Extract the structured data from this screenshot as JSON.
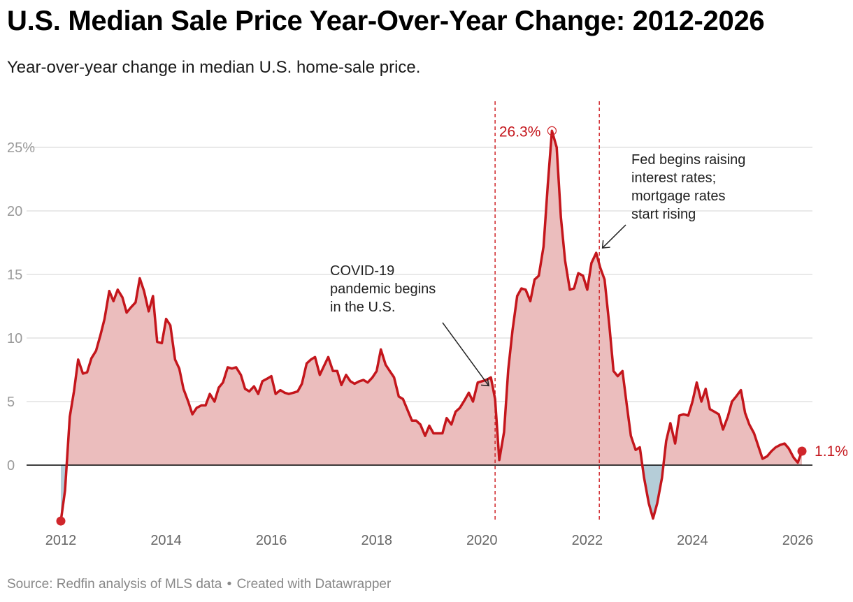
{
  "header": {
    "title": "U.S. Median Sale Price Year-Over-Year Change: 2012-2026",
    "subtitle": "Year-over-year change in median U.S. home-sale price."
  },
  "footer": {
    "source": "Source: Redfin analysis of MLS data",
    "separator": "•",
    "credit": "Created with Datawrapper"
  },
  "chart_data": {
    "type": "area",
    "title": "U.S. Median Sale Price Year-Over-Year Change: 2012-2026",
    "subtitle": "Year-over-year change in median U.S. home-sale price.",
    "xlabel": "",
    "ylabel": "",
    "xlim": [
      2012,
      2026
    ],
    "ylim": [
      -4.8,
      27
    ],
    "y_ticks": [
      {
        "value": 0,
        "label": "0"
      },
      {
        "value": 5,
        "label": "5"
      },
      {
        "value": 10,
        "label": "10"
      },
      {
        "value": 15,
        "label": "15"
      },
      {
        "value": 20,
        "label": "20"
      },
      {
        "value": 25,
        "label": "25%"
      }
    ],
    "x_ticks": [
      {
        "value": 2012,
        "label": "2012"
      },
      {
        "value": 2014,
        "label": "2014"
      },
      {
        "value": 2016,
        "label": "2016"
      },
      {
        "value": 2018,
        "label": "2018"
      },
      {
        "value": 2020,
        "label": "2020"
      },
      {
        "value": 2022,
        "label": "2022"
      },
      {
        "value": 2024,
        "label": "2024"
      },
      {
        "value": 2026,
        "label": "2026"
      }
    ],
    "grid": true,
    "colors": {
      "line": "#c4161c",
      "positive_fill": "#ebbdbd",
      "negative_fill": "#b5cdd8",
      "marker": "#d0262b"
    },
    "series": [
      {
        "points": [
          [
            2012.0,
            -4.4
          ],
          [
            2012.08,
            -2.0
          ],
          [
            2012.17,
            3.8
          ],
          [
            2012.25,
            5.8
          ],
          [
            2012.33,
            8.3
          ],
          [
            2012.42,
            7.2
          ],
          [
            2012.5,
            7.3
          ],
          [
            2012.58,
            8.4
          ],
          [
            2012.67,
            9.0
          ],
          [
            2012.75,
            10.2
          ],
          [
            2012.83,
            11.5
          ],
          [
            2012.92,
            13.7
          ],
          [
            2013.0,
            12.9
          ],
          [
            2013.08,
            13.8
          ],
          [
            2013.17,
            13.2
          ],
          [
            2013.25,
            12.0
          ],
          [
            2013.33,
            12.4
          ],
          [
            2013.42,
            12.8
          ],
          [
            2013.5,
            14.7
          ],
          [
            2013.58,
            13.7
          ],
          [
            2013.67,
            12.1
          ],
          [
            2013.75,
            13.3
          ],
          [
            2013.83,
            9.7
          ],
          [
            2013.92,
            9.6
          ],
          [
            2014.0,
            11.5
          ],
          [
            2014.08,
            11.0
          ],
          [
            2014.17,
            8.3
          ],
          [
            2014.25,
            7.6
          ],
          [
            2014.33,
            6.0
          ],
          [
            2014.42,
            5.0
          ],
          [
            2014.5,
            4.0
          ],
          [
            2014.58,
            4.5
          ],
          [
            2014.67,
            4.7
          ],
          [
            2014.75,
            4.7
          ],
          [
            2014.83,
            5.6
          ],
          [
            2014.92,
            5.0
          ],
          [
            2015.0,
            6.1
          ],
          [
            2015.08,
            6.5
          ],
          [
            2015.17,
            7.7
          ],
          [
            2015.25,
            7.6
          ],
          [
            2015.33,
            7.7
          ],
          [
            2015.42,
            7.1
          ],
          [
            2015.5,
            6.0
          ],
          [
            2015.58,
            5.8
          ],
          [
            2015.67,
            6.2
          ],
          [
            2015.75,
            5.6
          ],
          [
            2015.83,
            6.6
          ],
          [
            2015.92,
            6.8
          ],
          [
            2016.0,
            7.0
          ],
          [
            2016.08,
            5.6
          ],
          [
            2016.17,
            5.9
          ],
          [
            2016.25,
            5.7
          ],
          [
            2016.33,
            5.6
          ],
          [
            2016.42,
            5.7
          ],
          [
            2016.5,
            5.8
          ],
          [
            2016.58,
            6.4
          ],
          [
            2016.67,
            8.0
          ],
          [
            2016.75,
            8.3
          ],
          [
            2016.83,
            8.5
          ],
          [
            2016.92,
            7.1
          ],
          [
            2017.0,
            7.8
          ],
          [
            2017.08,
            8.5
          ],
          [
            2017.17,
            7.4
          ],
          [
            2017.25,
            7.4
          ],
          [
            2017.33,
            6.3
          ],
          [
            2017.42,
            7.1
          ],
          [
            2017.5,
            6.6
          ],
          [
            2017.58,
            6.4
          ],
          [
            2017.67,
            6.6
          ],
          [
            2017.75,
            6.7
          ],
          [
            2017.83,
            6.5
          ],
          [
            2017.92,
            6.9
          ],
          [
            2018.0,
            7.4
          ],
          [
            2018.08,
            9.1
          ],
          [
            2018.17,
            7.9
          ],
          [
            2018.25,
            7.4
          ],
          [
            2018.33,
            6.9
          ],
          [
            2018.42,
            5.4
          ],
          [
            2018.5,
            5.2
          ],
          [
            2018.58,
            4.4
          ],
          [
            2018.67,
            3.5
          ],
          [
            2018.75,
            3.5
          ],
          [
            2018.83,
            3.2
          ],
          [
            2018.92,
            2.3
          ],
          [
            2019.0,
            3.1
          ],
          [
            2019.08,
            2.5
          ],
          [
            2019.17,
            2.5
          ],
          [
            2019.25,
            2.5
          ],
          [
            2019.33,
            3.7
          ],
          [
            2019.42,
            3.2
          ],
          [
            2019.5,
            4.2
          ],
          [
            2019.58,
            4.5
          ],
          [
            2019.67,
            5.1
          ],
          [
            2019.75,
            5.7
          ],
          [
            2019.83,
            5.0
          ],
          [
            2019.92,
            6.5
          ],
          [
            2020.0,
            6.6
          ],
          [
            2020.08,
            6.7
          ],
          [
            2020.17,
            6.9
          ],
          [
            2020.25,
            5.2
          ],
          [
            2020.33,
            0.4
          ],
          [
            2020.42,
            2.6
          ],
          [
            2020.5,
            7.5
          ],
          [
            2020.58,
            10.6
          ],
          [
            2020.67,
            13.3
          ],
          [
            2020.75,
            13.9
          ],
          [
            2020.83,
            13.8
          ],
          [
            2020.92,
            12.9
          ],
          [
            2021.0,
            14.6
          ],
          [
            2021.08,
            14.9
          ],
          [
            2021.17,
            17.2
          ],
          [
            2021.25,
            22.0
          ],
          [
            2021.33,
            26.3
          ],
          [
            2021.42,
            25.0
          ],
          [
            2021.5,
            19.5
          ],
          [
            2021.58,
            16.1
          ],
          [
            2021.67,
            13.8
          ],
          [
            2021.75,
            13.9
          ],
          [
            2021.83,
            15.1
          ],
          [
            2021.92,
            14.9
          ],
          [
            2022.0,
            13.8
          ],
          [
            2022.08,
            15.9
          ],
          [
            2022.17,
            16.7
          ],
          [
            2022.25,
            15.5
          ],
          [
            2022.33,
            14.6
          ],
          [
            2022.42,
            11.0
          ],
          [
            2022.5,
            7.4
          ],
          [
            2022.58,
            7.0
          ],
          [
            2022.67,
            7.4
          ],
          [
            2022.75,
            4.8
          ],
          [
            2022.83,
            2.3
          ],
          [
            2022.92,
            1.2
          ],
          [
            2023.0,
            1.4
          ],
          [
            2023.08,
            -1.0
          ],
          [
            2023.17,
            -3.0
          ],
          [
            2023.25,
            -4.2
          ],
          [
            2023.33,
            -3.0
          ],
          [
            2023.42,
            -1.0
          ],
          [
            2023.5,
            1.9
          ],
          [
            2023.58,
            3.3
          ],
          [
            2023.67,
            1.7
          ],
          [
            2023.75,
            3.9
          ],
          [
            2023.83,
            4.0
          ],
          [
            2023.92,
            3.9
          ],
          [
            2024.0,
            5.0
          ],
          [
            2024.08,
            6.5
          ],
          [
            2024.17,
            5.0
          ],
          [
            2024.25,
            6.0
          ],
          [
            2024.33,
            4.4
          ],
          [
            2024.42,
            4.2
          ],
          [
            2024.5,
            4.0
          ],
          [
            2024.58,
            2.8
          ],
          [
            2024.67,
            3.8
          ],
          [
            2024.75,
            5.0
          ],
          [
            2024.83,
            5.4
          ],
          [
            2024.92,
            5.9
          ],
          [
            2025.0,
            4.1
          ],
          [
            2025.08,
            3.2
          ],
          [
            2025.17,
            2.5
          ],
          [
            2025.25,
            1.5
          ],
          [
            2025.33,
            0.5
          ],
          [
            2025.42,
            0.7
          ],
          [
            2025.5,
            1.1
          ],
          [
            2025.58,
            1.4
          ],
          [
            2025.67,
            1.6
          ],
          [
            2025.75,
            1.7
          ],
          [
            2025.83,
            1.3
          ],
          [
            2025.92,
            0.6
          ],
          [
            2026.0,
            0.2
          ],
          [
            2026.08,
            1.1
          ]
        ]
      }
    ],
    "point_labels": [
      {
        "x": 2021.33,
        "y": 26.3,
        "label": "26.3%"
      },
      {
        "x": 2026.08,
        "y": 1.1,
        "label": "1.1%"
      }
    ],
    "reference_lines": [
      {
        "x": 2020.25
      },
      {
        "x": 2022.23
      }
    ],
    "annotations": [
      {
        "lines": [
          "COVID-19",
          "pandemic begins",
          "in the U.S."
        ],
        "x": 2020.17,
        "y": 6.9
      },
      {
        "lines": [
          "Fed begins raising",
          "interest rates;",
          "mortgage rates",
          "start rising"
        ],
        "x": 2022.17,
        "y": 16.7
      }
    ]
  }
}
